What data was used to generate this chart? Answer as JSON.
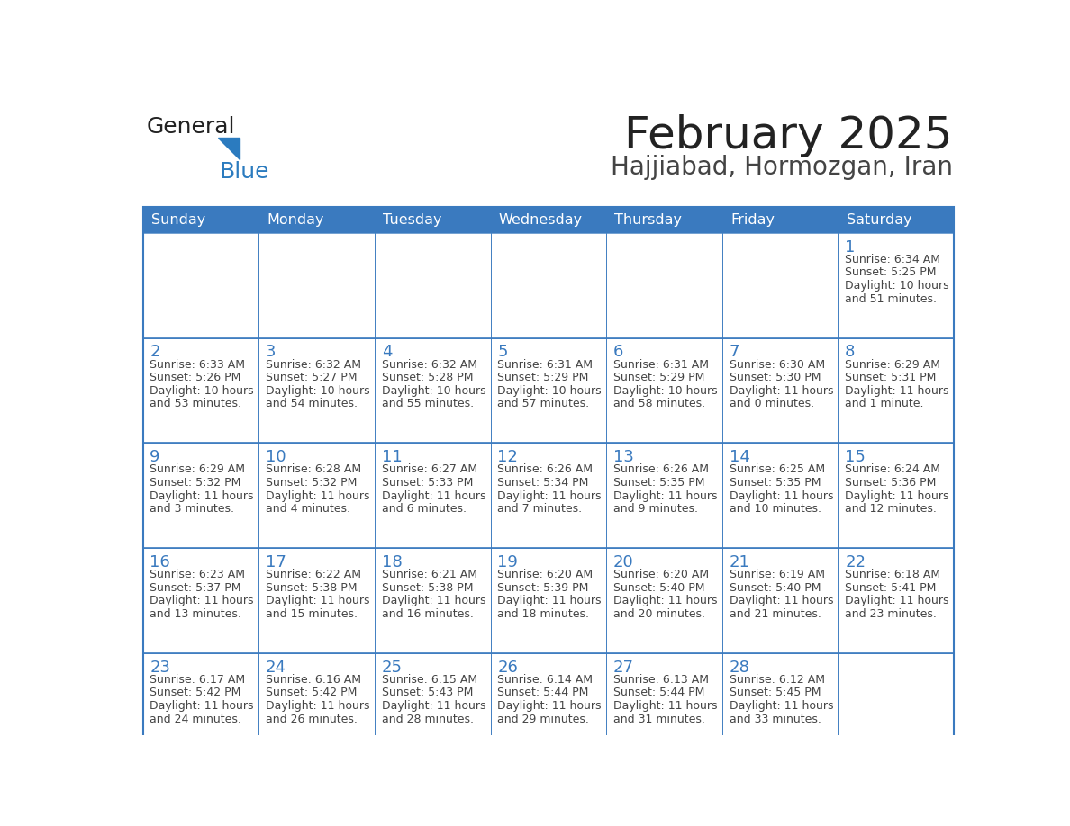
{
  "title": "February 2025",
  "subtitle": "Hajjiabad, Hormozgan, Iran",
  "header_bg": "#3a7abf",
  "header_text_color": "#ffffff",
  "border_color": "#3a7abf",
  "day_names": [
    "Sunday",
    "Monday",
    "Tuesday",
    "Wednesday",
    "Thursday",
    "Friday",
    "Saturday"
  ],
  "title_color": "#222222",
  "subtitle_color": "#444444",
  "day_num_color": "#3a7abf",
  "cell_text_color": "#444444",
  "logo_general_color": "#222222",
  "logo_blue_color": "#2b7bbf",
  "weeks": [
    [
      {
        "day": null,
        "sunrise": null,
        "sunset": null,
        "daylight": null
      },
      {
        "day": null,
        "sunrise": null,
        "sunset": null,
        "daylight": null
      },
      {
        "day": null,
        "sunrise": null,
        "sunset": null,
        "daylight": null
      },
      {
        "day": null,
        "sunrise": null,
        "sunset": null,
        "daylight": null
      },
      {
        "day": null,
        "sunrise": null,
        "sunset": null,
        "daylight": null
      },
      {
        "day": null,
        "sunrise": null,
        "sunset": null,
        "daylight": null
      },
      {
        "day": 1,
        "sunrise": "6:34 AM",
        "sunset": "5:25 PM",
        "daylight": "10 hours\nand 51 minutes."
      }
    ],
    [
      {
        "day": 2,
        "sunrise": "6:33 AM",
        "sunset": "5:26 PM",
        "daylight": "10 hours\nand 53 minutes."
      },
      {
        "day": 3,
        "sunrise": "6:32 AM",
        "sunset": "5:27 PM",
        "daylight": "10 hours\nand 54 minutes."
      },
      {
        "day": 4,
        "sunrise": "6:32 AM",
        "sunset": "5:28 PM",
        "daylight": "10 hours\nand 55 minutes."
      },
      {
        "day": 5,
        "sunrise": "6:31 AM",
        "sunset": "5:29 PM",
        "daylight": "10 hours\nand 57 minutes."
      },
      {
        "day": 6,
        "sunrise": "6:31 AM",
        "sunset": "5:29 PM",
        "daylight": "10 hours\nand 58 minutes."
      },
      {
        "day": 7,
        "sunrise": "6:30 AM",
        "sunset": "5:30 PM",
        "daylight": "11 hours\nand 0 minutes."
      },
      {
        "day": 8,
        "sunrise": "6:29 AM",
        "sunset": "5:31 PM",
        "daylight": "11 hours\nand 1 minute."
      }
    ],
    [
      {
        "day": 9,
        "sunrise": "6:29 AM",
        "sunset": "5:32 PM",
        "daylight": "11 hours\nand 3 minutes."
      },
      {
        "day": 10,
        "sunrise": "6:28 AM",
        "sunset": "5:32 PM",
        "daylight": "11 hours\nand 4 minutes."
      },
      {
        "day": 11,
        "sunrise": "6:27 AM",
        "sunset": "5:33 PM",
        "daylight": "11 hours\nand 6 minutes."
      },
      {
        "day": 12,
        "sunrise": "6:26 AM",
        "sunset": "5:34 PM",
        "daylight": "11 hours\nand 7 minutes."
      },
      {
        "day": 13,
        "sunrise": "6:26 AM",
        "sunset": "5:35 PM",
        "daylight": "11 hours\nand 9 minutes."
      },
      {
        "day": 14,
        "sunrise": "6:25 AM",
        "sunset": "5:35 PM",
        "daylight": "11 hours\nand 10 minutes."
      },
      {
        "day": 15,
        "sunrise": "6:24 AM",
        "sunset": "5:36 PM",
        "daylight": "11 hours\nand 12 minutes."
      }
    ],
    [
      {
        "day": 16,
        "sunrise": "6:23 AM",
        "sunset": "5:37 PM",
        "daylight": "11 hours\nand 13 minutes."
      },
      {
        "day": 17,
        "sunrise": "6:22 AM",
        "sunset": "5:38 PM",
        "daylight": "11 hours\nand 15 minutes."
      },
      {
        "day": 18,
        "sunrise": "6:21 AM",
        "sunset": "5:38 PM",
        "daylight": "11 hours\nand 16 minutes."
      },
      {
        "day": 19,
        "sunrise": "6:20 AM",
        "sunset": "5:39 PM",
        "daylight": "11 hours\nand 18 minutes."
      },
      {
        "day": 20,
        "sunrise": "6:20 AM",
        "sunset": "5:40 PM",
        "daylight": "11 hours\nand 20 minutes."
      },
      {
        "day": 21,
        "sunrise": "6:19 AM",
        "sunset": "5:40 PM",
        "daylight": "11 hours\nand 21 minutes."
      },
      {
        "day": 22,
        "sunrise": "6:18 AM",
        "sunset": "5:41 PM",
        "daylight": "11 hours\nand 23 minutes."
      }
    ],
    [
      {
        "day": 23,
        "sunrise": "6:17 AM",
        "sunset": "5:42 PM",
        "daylight": "11 hours\nand 24 minutes."
      },
      {
        "day": 24,
        "sunrise": "6:16 AM",
        "sunset": "5:42 PM",
        "daylight": "11 hours\nand 26 minutes."
      },
      {
        "day": 25,
        "sunrise": "6:15 AM",
        "sunset": "5:43 PM",
        "daylight": "11 hours\nand 28 minutes."
      },
      {
        "day": 26,
        "sunrise": "6:14 AM",
        "sunset": "5:44 PM",
        "daylight": "11 hours\nand 29 minutes."
      },
      {
        "day": 27,
        "sunrise": "6:13 AM",
        "sunset": "5:44 PM",
        "daylight": "11 hours\nand 31 minutes."
      },
      {
        "day": 28,
        "sunrise": "6:12 AM",
        "sunset": "5:45 PM",
        "daylight": "11 hours\nand 33 minutes."
      },
      {
        "day": null,
        "sunrise": null,
        "sunset": null,
        "daylight": null
      }
    ]
  ]
}
